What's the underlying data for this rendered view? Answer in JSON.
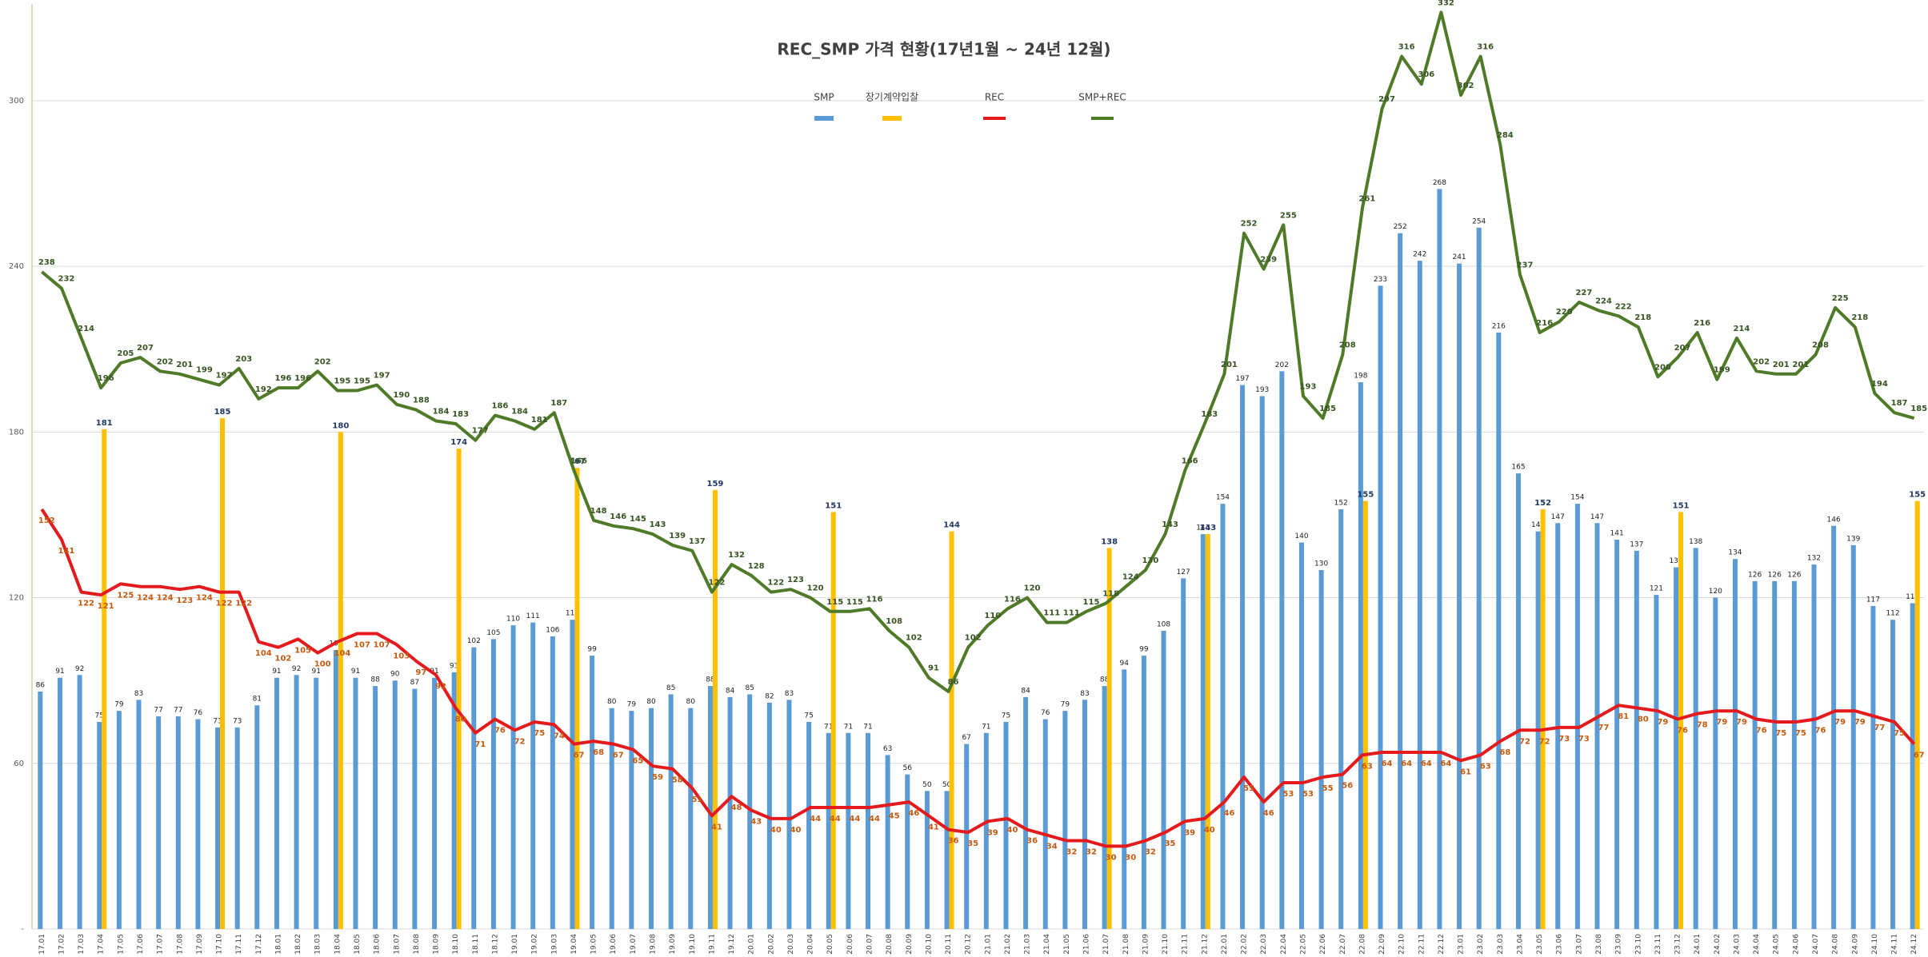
{
  "chart_data": {
    "type": "bar",
    "title": "REC_SMP 가격 현황(17년1월 ~ 24년 12월)",
    "categories": [
      "17.01",
      "17.02",
      "17.03",
      "17.04",
      "17.05",
      "17.06",
      "17.07",
      "17.08",
      "17.09",
      "17.10",
      "17.11",
      "17.12",
      "18.01",
      "18.02",
      "18.03",
      "18.04",
      "18.05",
      "18.06",
      "18.07",
      "18.08",
      "18.09",
      "18.10",
      "18.11",
      "18.12",
      "19.01",
      "19.02",
      "19.03",
      "19.04",
      "19.05",
      "19.06",
      "19.07",
      "19.08",
      "19.09",
      "19.10",
      "19.11",
      "19.12",
      "20.01",
      "20.02",
      "20.03",
      "20.04",
      "20.05",
      "20.06",
      "20.07",
      "20.08",
      "20.09",
      "20.10",
      "20.11",
      "20.12",
      "21.01",
      "21.02",
      "21.03",
      "21.04",
      "21.05",
      "21.06",
      "21.07",
      "21.08",
      "21.09",
      "21.10",
      "21.11",
      "21.12",
      "22.01",
      "22.02",
      "22.03",
      "22.04",
      "22.05",
      "22.06",
      "22.07",
      "22.08",
      "22.09",
      "22.10",
      "22.11",
      "22.12",
      "23.01",
      "23.02",
      "23.03",
      "23.04",
      "23.05",
      "23.06",
      "23.07",
      "23.08",
      "23.09",
      "23.10",
      "23.11",
      "23.12",
      "24.01",
      "24.02",
      "24.03",
      "24.04",
      "24.05",
      "24.06",
      "24.07",
      "24.08",
      "24.09",
      "24.10",
      "24.11",
      "24.12"
    ],
    "series": [
      {
        "name": "SMP",
        "type": "bar",
        "color": "#5b9bd5",
        "label_color": "#1f1f1f",
        "values": [
          86,
          91,
          92,
          75,
          79,
          83,
          77,
          77,
          76,
          73,
          73,
          81,
          91,
          92,
          91,
          101,
          91,
          88,
          90,
          87,
          91,
          93,
          102,
          105,
          110,
          111,
          106,
          112,
          99,
          80,
          79,
          80,
          85,
          80,
          88,
          84,
          85,
          82,
          83,
          75,
          71,
          71,
          71,
          63,
          56,
          50,
          50,
          67,
          71,
          75,
          84,
          76,
          79,
          83,
          88,
          94,
          99,
          108,
          127,
          143,
          154,
          197,
          193,
          202,
          140,
          130,
          152,
          198,
          233,
          252,
          242,
          268,
          241,
          254,
          216,
          165,
          144,
          147,
          154,
          147,
          141,
          137,
          121,
          131,
          138,
          120,
          134,
          126,
          126,
          126,
          132,
          146,
          139,
          117,
          112,
          118
        ]
      },
      {
        "name": "장기계약입찰",
        "type": "bar",
        "color": "#ffc000",
        "label_color": "#1f3864",
        "values": [
          null,
          null,
          null,
          181,
          null,
          null,
          null,
          null,
          null,
          185,
          null,
          null,
          null,
          null,
          null,
          180,
          null,
          null,
          null,
          null,
          null,
          174,
          null,
          null,
          null,
          null,
          null,
          167,
          null,
          null,
          null,
          null,
          null,
          null,
          159,
          null,
          null,
          null,
          null,
          null,
          151,
          null,
          null,
          null,
          null,
          null,
          144,
          null,
          null,
          null,
          null,
          null,
          null,
          null,
          138,
          null,
          null,
          null,
          null,
          143,
          null,
          null,
          null,
          null,
          null,
          null,
          null,
          155,
          null,
          null,
          null,
          null,
          null,
          null,
          null,
          null,
          152,
          null,
          null,
          null,
          null,
          null,
          null,
          151,
          null,
          null,
          null,
          null,
          null,
          null,
          null,
          null,
          null,
          null,
          null,
          155
        ]
      },
      {
        "name": "REC",
        "type": "line",
        "color": "#e41a1c",
        "label_color": "#c55a11",
        "values": [
          152,
          141,
          122,
          121,
          125,
          124,
          124,
          123,
          124,
          122,
          122,
          104,
          102,
          105,
          100,
          104,
          107,
          107,
          103,
          97,
          92,
          80,
          71,
          76,
          72,
          75,
          74,
          67,
          68,
          67,
          65,
          59,
          58,
          51,
          41,
          48,
          43,
          40,
          40,
          44,
          44,
          44,
          44,
          45,
          46,
          41,
          36,
          35,
          39,
          40,
          36,
          34,
          32,
          32,
          30,
          30,
          32,
          35,
          39,
          40,
          46,
          55,
          46,
          53,
          53,
          55,
          56,
          63,
          64,
          64,
          64,
          64,
          61,
          63,
          68,
          72,
          72,
          73,
          73,
          77,
          81,
          80,
          79,
          76,
          78,
          79,
          79,
          76,
          75,
          75,
          76,
          79,
          79,
          77,
          75,
          67
        ]
      },
      {
        "name": "SMP+REC",
        "type": "line",
        "color": "#4f7a28",
        "label_color": "#375623",
        "values": [
          238,
          232,
          214,
          196,
          205,
          207,
          202,
          201,
          199,
          197,
          203,
          192,
          196,
          196,
          202,
          195,
          195,
          197,
          190,
          188,
          184,
          183,
          177,
          186,
          184,
          181,
          187,
          166,
          148,
          146,
          145,
          143,
          139,
          137,
          122,
          132,
          128,
          122,
          123,
          120,
          115,
          115,
          116,
          108,
          102,
          91,
          86,
          102,
          110,
          116,
          120,
          111,
          111,
          115,
          118,
          124,
          130,
          143,
          166,
          183,
          201,
          252,
          239,
          255,
          193,
          185,
          208,
          261,
          297,
          316,
          306,
          332,
          302,
          316,
          284,
          237,
          216,
          220,
          227,
          224,
          222,
          218,
          200,
          207,
          216,
          199,
          214,
          202,
          201,
          201,
          208,
          225,
          218,
          194,
          187,
          185
        ]
      }
    ],
    "ylim": [
      0,
      335
    ],
    "yticks": [
      {
        "value": 0,
        "label": "-"
      },
      60,
      120,
      180,
      240,
      300
    ],
    "grid": true,
    "legend": "top"
  }
}
